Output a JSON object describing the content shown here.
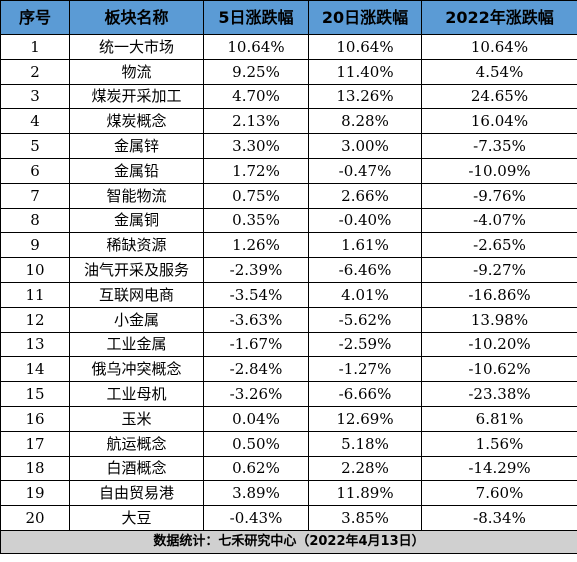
{
  "table": {
    "headers": [
      "序号",
      "板块名称",
      "5日涨跌幅",
      "20日涨跌幅",
      "2022年涨跌幅"
    ],
    "rows": [
      [
        "1",
        "统一大市场",
        "10.64%",
        "10.64%",
        "10.64%"
      ],
      [
        "2",
        "物流",
        "9.25%",
        "11.40%",
        "4.54%"
      ],
      [
        "3",
        "煤炭开采加工",
        "4.70%",
        "13.26%",
        "24.65%"
      ],
      [
        "4",
        "煤炭概念",
        "2.13%",
        "8.28%",
        "16.04%"
      ],
      [
        "5",
        "金属锌",
        "3.30%",
        "3.00%",
        "-7.35%"
      ],
      [
        "6",
        "金属铅",
        "1.72%",
        "-0.47%",
        "-10.09%"
      ],
      [
        "7",
        "智能物流",
        "0.75%",
        "2.66%",
        "-9.76%"
      ],
      [
        "8",
        "金属铜",
        "0.35%",
        "-0.40%",
        "-4.07%"
      ],
      [
        "9",
        "稀缺资源",
        "1.26%",
        "1.61%",
        "-2.65%"
      ],
      [
        "10",
        "油气开采及服务",
        "-2.39%",
        "-6.46%",
        "-9.27%"
      ],
      [
        "11",
        "互联网电商",
        "-3.54%",
        "4.01%",
        "-16.86%"
      ],
      [
        "12",
        "小金属",
        "-3.63%",
        "-5.62%",
        "13.98%"
      ],
      [
        "13",
        "工业金属",
        "-1.67%",
        "-2.59%",
        "-10.20%"
      ],
      [
        "14",
        "俄乌冲突概念",
        "-2.84%",
        "-1.27%",
        "-10.62%"
      ],
      [
        "15",
        "工业母机",
        "-3.26%",
        "-6.66%",
        "-23.38%"
      ],
      [
        "16",
        "玉米",
        "0.04%",
        "12.69%",
        "6.81%"
      ],
      [
        "17",
        "航运概念",
        "0.50%",
        "5.18%",
        "1.56%"
      ],
      [
        "18",
        "白酒概念",
        "0.62%",
        "2.28%",
        "-14.29%"
      ],
      [
        "19",
        "自由贸易港",
        "3.89%",
        "11.89%",
        "7.60%"
      ],
      [
        "20",
        "大豆",
        "-0.43%",
        "3.85%",
        "-8.34%"
      ]
    ],
    "footer": "数据统计：七禾研究中心（2022年4月13日）"
  },
  "colors": {
    "header_bg": "#5b9bd5",
    "footer_bg": "#d0d0d0",
    "border": "#000000"
  }
}
